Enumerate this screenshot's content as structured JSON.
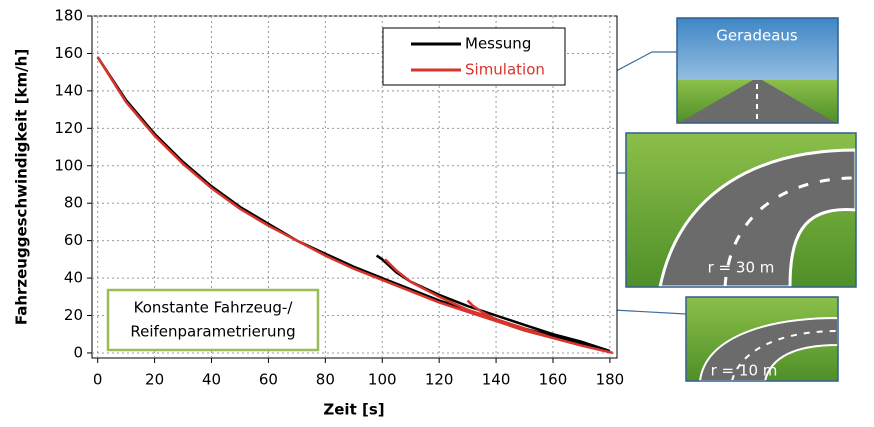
{
  "chart_data": {
    "type": "line",
    "xlabel": "Zeit [s]",
    "ylabel": "Fahrzeuggeschwindigkeit [km/h]",
    "xlim": [
      -2,
      182.5
    ],
    "ylim": [
      -2.7,
      180
    ],
    "xticks": [
      0,
      20,
      40,
      60,
      80,
      100,
      120,
      140,
      160,
      180
    ],
    "yticks": [
      0,
      20,
      40,
      60,
      80,
      100,
      120,
      140,
      160,
      180
    ],
    "legend": "top-right",
    "series": [
      {
        "name": "Messung",
        "color": "#000000",
        "x": [
          0,
          10,
          20,
          30,
          40,
          50,
          60,
          70,
          80,
          90,
          100,
          110,
          120,
          130,
          140,
          150,
          160,
          170,
          180,
          null,
          98,
          100,
          105,
          110,
          120,
          130,
          140,
          150,
          160,
          170,
          180
        ],
        "values": [
          158,
          135,
          117,
          102,
          89,
          78,
          69,
          60,
          53,
          46,
          40,
          34,
          28,
          23,
          18,
          13,
          9,
          5,
          1,
          null,
          52,
          50,
          43,
          38,
          31,
          25,
          20,
          15,
          10,
          6,
          1
        ]
      },
      {
        "name": "Simulation",
        "color": "#d9342b",
        "x": [
          0,
          10,
          20,
          30,
          40,
          50,
          60,
          70,
          80,
          90,
          100,
          110,
          120,
          130,
          140,
          150,
          160,
          170,
          181,
          null,
          101,
          105,
          110,
          120,
          130,
          140,
          150,
          160,
          170,
          181,
          null,
          130,
          132,
          135,
          140,
          150,
          160,
          170,
          181
        ],
        "values": [
          158,
          134,
          116,
          101,
          88,
          77,
          68,
          60,
          52,
          45,
          39,
          33,
          27,
          22,
          17,
          12,
          8,
          4,
          0,
          null,
          50,
          44,
          38,
          30,
          23,
          18,
          13,
          8,
          4,
          0,
          null,
          28,
          25,
          22,
          18,
          12,
          8,
          4,
          0
        ]
      }
    ],
    "annotation": [
      "Konstante Fahrzeug-/",
      "Reifenparametrierung"
    ],
    "insets": [
      {
        "label": "Geradeaus"
      },
      {
        "label": "r = 30 m"
      },
      {
        "label": "r = 10 m"
      }
    ]
  }
}
